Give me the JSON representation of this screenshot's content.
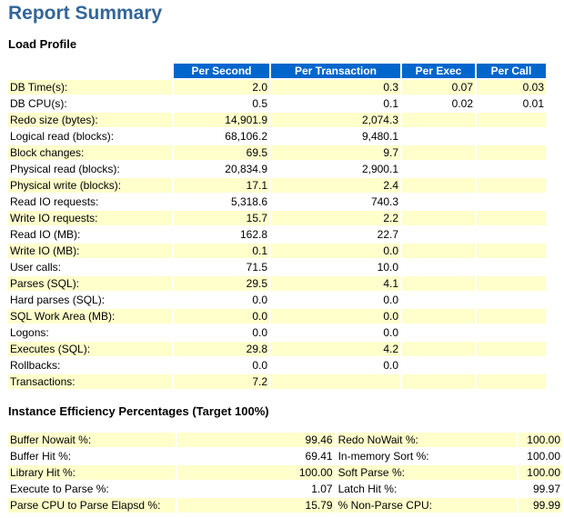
{
  "title": "Report Summary",
  "load_profile": {
    "heading": "Load Profile",
    "columns": [
      "Per Second",
      "Per Transaction",
      "Per Exec",
      "Per Call"
    ],
    "rows": [
      {
        "label": "DB Time(s):",
        "values": [
          "2.0",
          "0.3",
          "0.07",
          "0.03"
        ]
      },
      {
        "label": "DB CPU(s):",
        "values": [
          "0.5",
          "0.1",
          "0.02",
          "0.01"
        ]
      },
      {
        "label": "Redo size (bytes):",
        "values": [
          "14,901.9",
          "2,074.3",
          "",
          ""
        ]
      },
      {
        "label": "Logical read (blocks):",
        "values": [
          "68,106.2",
          "9,480.1",
          "",
          ""
        ]
      },
      {
        "label": "Block changes:",
        "values": [
          "69.5",
          "9.7",
          "",
          ""
        ]
      },
      {
        "label": "Physical read (blocks):",
        "values": [
          "20,834.9",
          "2,900.1",
          "",
          ""
        ]
      },
      {
        "label": "Physical write (blocks):",
        "values": [
          "17.1",
          "2.4",
          "",
          ""
        ]
      },
      {
        "label": "Read IO requests:",
        "values": [
          "5,318.6",
          "740.3",
          "",
          ""
        ]
      },
      {
        "label": "Write IO requests:",
        "values": [
          "15.7",
          "2.2",
          "",
          ""
        ]
      },
      {
        "label": "Read IO (MB):",
        "values": [
          "162.8",
          "22.7",
          "",
          ""
        ]
      },
      {
        "label": "Write IO (MB):",
        "values": [
          "0.1",
          "0.0",
          "",
          ""
        ]
      },
      {
        "label": "User calls:",
        "values": [
          "71.5",
          "10.0",
          "",
          ""
        ]
      },
      {
        "label": "Parses (SQL):",
        "values": [
          "29.5",
          "4.1",
          "",
          ""
        ]
      },
      {
        "label": "Hard parses (SQL):",
        "values": [
          "0.0",
          "0.0",
          "",
          ""
        ]
      },
      {
        "label": "SQL Work Area (MB):",
        "values": [
          "0.0",
          "0.0",
          "",
          ""
        ]
      },
      {
        "label": "Logons:",
        "values": [
          "0.0",
          "0.0",
          "",
          ""
        ]
      },
      {
        "label": "Executes (SQL):",
        "values": [
          "29.8",
          "4.2",
          "",
          ""
        ]
      },
      {
        "label": "Rollbacks:",
        "values": [
          "0.0",
          "0.0",
          "",
          ""
        ]
      },
      {
        "label": "Transactions:",
        "values": [
          "7.2",
          "",
          "",
          ""
        ]
      }
    ]
  },
  "efficiency": {
    "heading": "Instance Efficiency Percentages (Target 100%)",
    "rows": [
      {
        "label1": "Buffer Nowait %:",
        "value1": "99.46",
        "label2": "Redo NoWait %:",
        "value2": "100.00"
      },
      {
        "label1": "Buffer Hit %:",
        "value1": "69.41",
        "label2": "In-memory Sort %:",
        "value2": "100.00"
      },
      {
        "label1": "Library Hit %:",
        "value1": "100.00",
        "label2": "Soft Parse %:",
        "value2": "100.00"
      },
      {
        "label1": "Execute to Parse %:",
        "value1": "1.07",
        "label2": "Latch Hit %:",
        "value2": "99.97"
      },
      {
        "label1": "Parse CPU to Parse Elapsd %:",
        "value1": "15.79",
        "label2": "% Non-Parse CPU:",
        "value2": "99.99"
      }
    ]
  }
}
